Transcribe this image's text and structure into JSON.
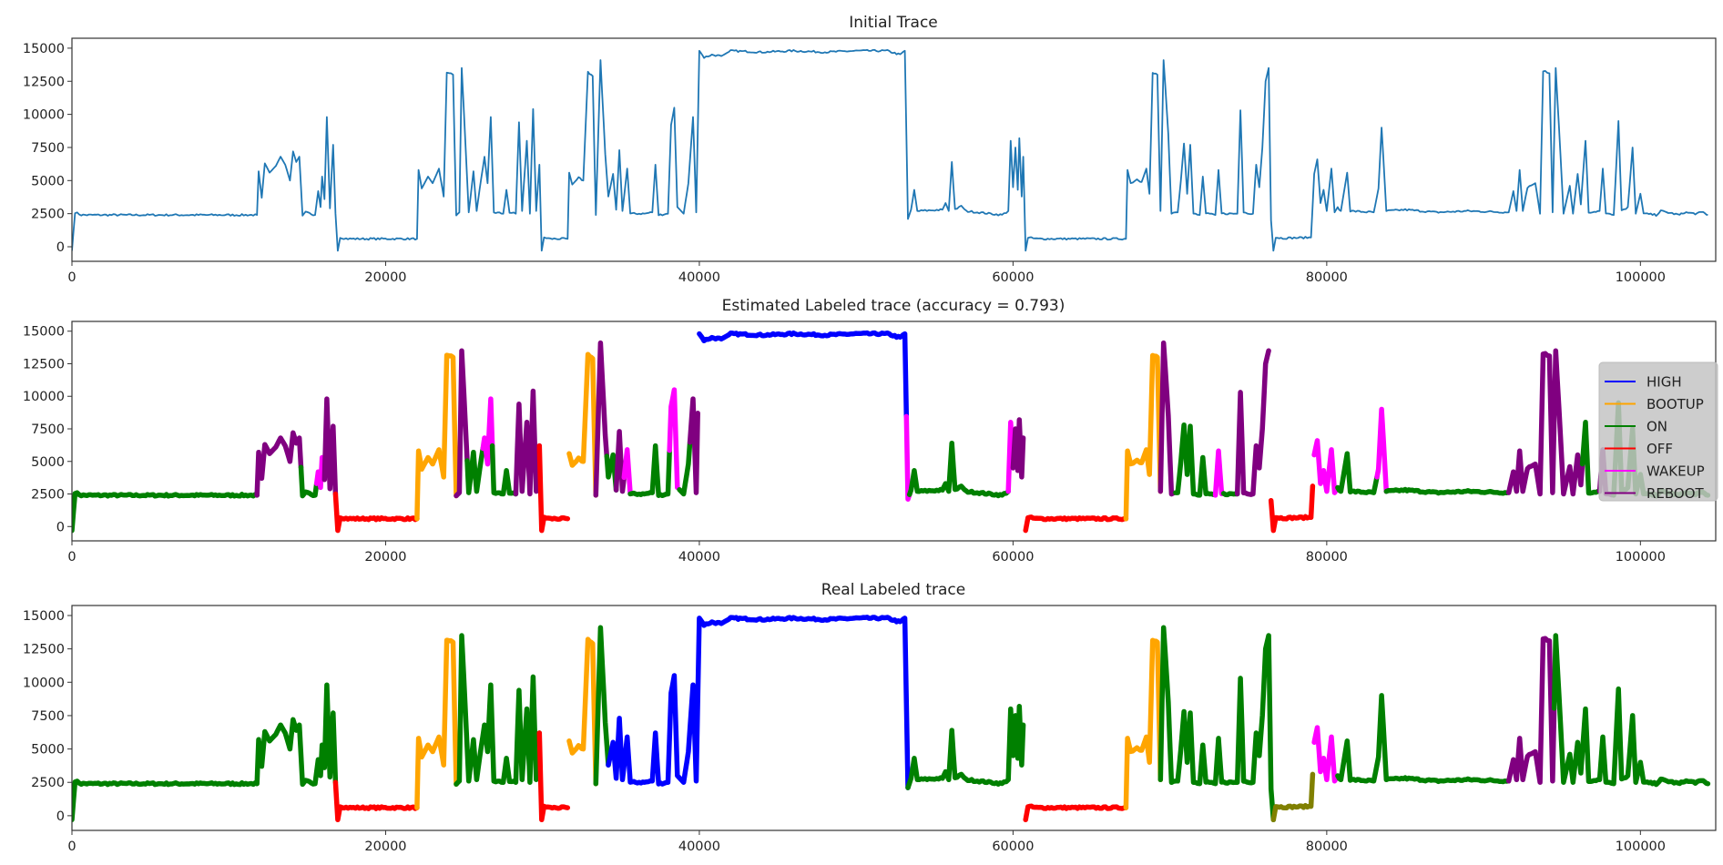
{
  "chart_data": [
    {
      "type": "line",
      "title": "Initial Trace",
      "line_color": "#1f77b4",
      "xlim": [
        0,
        104800
      ],
      "ylim": [
        -1100,
        15750
      ],
      "xticks": [
        0,
        20000,
        40000,
        60000,
        80000,
        100000
      ],
      "yticks": [
        0,
        2500,
        5000,
        7500,
        10000,
        12500,
        15000
      ],
      "grid": false
    },
    {
      "type": "line",
      "title": "Estimated Labeled trace (accuracy = 0.793)",
      "accuracy": 0.793,
      "xlim": [
        0,
        104800
      ],
      "ylim": [
        -1100,
        15750
      ],
      "xticks": [
        0,
        20000,
        40000,
        60000,
        80000,
        100000
      ],
      "yticks": [
        0,
        2500,
        5000,
        7500,
        10000,
        12500,
        15000
      ],
      "grid": false,
      "legend_placement": "right",
      "segments": [
        [
          0,
          11800,
          "ON"
        ],
        [
          11800,
          14600,
          "REBOOT"
        ],
        [
          14600,
          15600,
          "ON"
        ],
        [
          15600,
          16000,
          "WAKEUP"
        ],
        [
          16000,
          16800,
          "REBOOT"
        ],
        [
          16800,
          22000,
          "OFF"
        ],
        [
          22000,
          24500,
          "BOOTUP"
        ],
        [
          24500,
          25200,
          "REBOOT"
        ],
        [
          25200,
          26200,
          "ON"
        ],
        [
          26200,
          26800,
          "WAKEUP"
        ],
        [
          26800,
          28300,
          "ON"
        ],
        [
          28300,
          29800,
          "REBOOT"
        ],
        [
          29800,
          31650,
          "OFF"
        ],
        [
          31650,
          33400,
          "BOOTUP"
        ],
        [
          33400,
          34100,
          "REBOOT"
        ],
        [
          34100,
          34700,
          "ON"
        ],
        [
          34700,
          35200,
          "REBOOT"
        ],
        [
          35200,
          35600,
          "WAKEUP"
        ],
        [
          35600,
          38100,
          "ON"
        ],
        [
          38100,
          38700,
          "WAKEUP"
        ],
        [
          38700,
          39400,
          "ON"
        ],
        [
          39400,
          39950,
          "REBOOT"
        ],
        [
          39950,
          53200,
          "HIGH"
        ],
        [
          53200,
          53400,
          "WAKEUP"
        ],
        [
          53400,
          59700,
          "ON"
        ],
        [
          59700,
          60000,
          "WAKEUP"
        ],
        [
          60000,
          60700,
          "REBOOT"
        ],
        [
          60700,
          67200,
          "OFF"
        ],
        [
          67200,
          69400,
          "BOOTUP"
        ],
        [
          69400,
          70300,
          "REBOOT"
        ],
        [
          70300,
          72800,
          "ON"
        ],
        [
          72800,
          73400,
          "WAKEUP"
        ],
        [
          73400,
          74300,
          "ON"
        ],
        [
          74300,
          76400,
          "REBOOT"
        ],
        [
          76400,
          79150,
          "OFF"
        ],
        [
          79150,
          80700,
          "WAKEUP"
        ],
        [
          80700,
          83200,
          "ON"
        ],
        [
          83200,
          83800,
          "WAKEUP"
        ],
        [
          83800,
          91500,
          "ON"
        ],
        [
          91500,
          96300,
          "REBOOT"
        ],
        [
          96300,
          97400,
          "ON"
        ],
        [
          97400,
          98200,
          "REBOOT"
        ],
        [
          98200,
          104300,
          "ON"
        ]
      ]
    },
    {
      "type": "line",
      "title": "Real Labeled trace",
      "xlim": [
        0,
        104800
      ],
      "ylim": [
        -1100,
        15750
      ],
      "xticks": [
        0,
        20000,
        40000,
        60000,
        80000,
        100000
      ],
      "yticks": [
        0,
        2500,
        5000,
        7500,
        10000,
        12500,
        15000
      ],
      "grid": false,
      "segments": [
        [
          0,
          16800,
          "ON"
        ],
        [
          16800,
          22000,
          "OFF"
        ],
        [
          22000,
          24500,
          "BOOTUP"
        ],
        [
          24500,
          29800,
          "ON"
        ],
        [
          29800,
          31650,
          "OFF"
        ],
        [
          31650,
          33400,
          "BOOTUP"
        ],
        [
          33400,
          34200,
          "ON"
        ],
        [
          34200,
          53300,
          "HIGH"
        ],
        [
          53300,
          60700,
          "ON"
        ],
        [
          60700,
          67200,
          "OFF"
        ],
        [
          67200,
          69400,
          "BOOTUP"
        ],
        [
          69400,
          76600,
          "ON"
        ],
        [
          76600,
          79150,
          "#808000"
        ],
        [
          79150,
          80700,
          "WAKEUP"
        ],
        [
          80700,
          91500,
          "ON"
        ],
        [
          91500,
          94500,
          "REBOOT"
        ],
        [
          94500,
          104300,
          "ON"
        ]
      ]
    }
  ],
  "legend": [
    {
      "name": "HIGH",
      "color": "#0000ff"
    },
    {
      "name": "BOOTUP",
      "color": "#ffa500"
    },
    {
      "name": "ON",
      "color": "#008000"
    },
    {
      "name": "OFF",
      "color": "#ff0000"
    },
    {
      "name": "WAKEUP",
      "color": "#ff00ff"
    },
    {
      "name": "REBOOT",
      "color": "#800080"
    }
  ],
  "trace": [
    [
      0,
      -300
    ],
    [
      200,
      2600
    ],
    [
      600,
      2400
    ],
    [
      11800,
      2400
    ],
    [
      11900,
      5700
    ],
    [
      12100,
      3700
    ],
    [
      12300,
      6300
    ],
    [
      12600,
      5600
    ],
    [
      13000,
      6100
    ],
    [
      13300,
      6800
    ],
    [
      13600,
      6200
    ],
    [
      13900,
      5000
    ],
    [
      14100,
      7200
    ],
    [
      14300,
      6400
    ],
    [
      14500,
      6800
    ],
    [
      14700,
      2300
    ],
    [
      14900,
      2600
    ],
    [
      15500,
      2400
    ],
    [
      15700,
      4200
    ],
    [
      15850,
      3000
    ],
    [
      15950,
      5300
    ],
    [
      16100,
      3600
    ],
    [
      16250,
      9800
    ],
    [
      16450,
      2900
    ],
    [
      16650,
      7700
    ],
    [
      16800,
      2500
    ],
    [
      16950,
      -300
    ],
    [
      17100,
      700
    ],
    [
      17600,
      600
    ],
    [
      22000,
      600
    ],
    [
      22100,
      5800
    ],
    [
      22300,
      4400
    ],
    [
      22700,
      5300
    ],
    [
      23000,
      4800
    ],
    [
      23400,
      5900
    ],
    [
      23700,
      3800
    ],
    [
      23900,
      13100
    ],
    [
      24300,
      13000
    ],
    [
      24500,
      2300
    ],
    [
      24700,
      2600
    ],
    [
      24850,
      13500
    ],
    [
      25100,
      7500
    ],
    [
      25300,
      2600
    ],
    [
      25600,
      5700
    ],
    [
      25800,
      2700
    ],
    [
      26000,
      4400
    ],
    [
      26300,
      6800
    ],
    [
      26500,
      4800
    ],
    [
      26700,
      9800
    ],
    [
      26900,
      2600
    ],
    [
      27500,
      2500
    ],
    [
      27700,
      4300
    ],
    [
      27900,
      2600
    ],
    [
      28300,
      2500
    ],
    [
      28500,
      9400
    ],
    [
      28700,
      2700
    ],
    [
      29000,
      8000
    ],
    [
      29200,
      2500
    ],
    [
      29400,
      10400
    ],
    [
      29600,
      2700
    ],
    [
      29800,
      6200
    ],
    [
      29950,
      -300
    ],
    [
      30100,
      700
    ],
    [
      30500,
      600
    ],
    [
      31600,
      600
    ],
    [
      31700,
      5600
    ],
    [
      31900,
      4700
    ],
    [
      32300,
      5200
    ],
    [
      32600,
      5000
    ],
    [
      32900,
      13200
    ],
    [
      33200,
      12900
    ],
    [
      33400,
      2400
    ],
    [
      33700,
      14100
    ],
    [
      34000,
      7000
    ],
    [
      34200,
      3800
    ],
    [
      34500,
      5500
    ],
    [
      34700,
      2800
    ],
    [
      34900,
      7300
    ],
    [
      35100,
      2700
    ],
    [
      35400,
      5900
    ],
    [
      35600,
      2500
    ],
    [
      36500,
      2500
    ],
    [
      37000,
      2600
    ],
    [
      37200,
      6200
    ],
    [
      37400,
      2400
    ],
    [
      38000,
      2500
    ],
    [
      38200,
      9200
    ],
    [
      38400,
      10500
    ],
    [
      38600,
      3000
    ],
    [
      39000,
      2500
    ],
    [
      39300,
      4800
    ],
    [
      39600,
      9800
    ],
    [
      39800,
      2600
    ],
    [
      40000,
      14800
    ],
    [
      40300,
      14300
    ],
    [
      40800,
      14500
    ],
    [
      41400,
      14400
    ],
    [
      42000,
      14800
    ],
    [
      44000,
      14700
    ],
    [
      46000,
      14800
    ],
    [
      48000,
      14700
    ],
    [
      50000,
      14800
    ],
    [
      52000,
      14800
    ],
    [
      52800,
      14500
    ],
    [
      53100,
      14800
    ],
    [
      53300,
      2100
    ],
    [
      53500,
      2800
    ],
    [
      53700,
      4300
    ],
    [
      53900,
      2700
    ],
    [
      55500,
      2800
    ],
    [
      55700,
      3300
    ],
    [
      55900,
      2700
    ],
    [
      56100,
      6400
    ],
    [
      56300,
      2800
    ],
    [
      56700,
      3100
    ],
    [
      57000,
      2700
    ],
    [
      59300,
      2400
    ],
    [
      59700,
      2700
    ],
    [
      59850,
      8000
    ],
    [
      60000,
      4500
    ],
    [
      60150,
      7500
    ],
    [
      60300,
      4300
    ],
    [
      60400,
      8200
    ],
    [
      60550,
      3800
    ],
    [
      60650,
      6800
    ],
    [
      60800,
      -300
    ],
    [
      60950,
      700
    ],
    [
      61500,
      600
    ],
    [
      67200,
      600
    ],
    [
      67300,
      5800
    ],
    [
      67500,
      4800
    ],
    [
      67900,
      5100
    ],
    [
      68200,
      4900
    ],
    [
      68500,
      5900
    ],
    [
      68700,
      4000
    ],
    [
      68900,
      13200
    ],
    [
      69200,
      13000
    ],
    [
      69400,
      2700
    ],
    [
      69600,
      14100
    ],
    [
      69900,
      8500
    ],
    [
      70100,
      2500
    ],
    [
      70500,
      2600
    ],
    [
      70700,
      5000
    ],
    [
      70900,
      7800
    ],
    [
      71100,
      4000
    ],
    [
      71300,
      7700
    ],
    [
      71500,
      2500
    ],
    [
      71900,
      2400
    ],
    [
      72100,
      5300
    ],
    [
      72300,
      2500
    ],
    [
      72900,
      2400
    ],
    [
      73100,
      5800
    ],
    [
      73300,
      2500
    ],
    [
      74300,
      2500
    ],
    [
      74500,
      10300
    ],
    [
      74700,
      2600
    ],
    [
      75300,
      2500
    ],
    [
      75500,
      6200
    ],
    [
      75700,
      4500
    ],
    [
      75900,
      7500
    ],
    [
      76100,
      12500
    ],
    [
      76300,
      13500
    ],
    [
      76450,
      2000
    ],
    [
      76600,
      -300
    ],
    [
      76750,
      700
    ],
    [
      77200,
      650
    ],
    [
      79000,
      700
    ],
    [
      79200,
      5500
    ],
    [
      79400,
      6600
    ],
    [
      79600,
      3300
    ],
    [
      79800,
      4300
    ],
    [
      80000,
      2700
    ],
    [
      80300,
      5900
    ],
    [
      80500,
      2600
    ],
    [
      80700,
      3000
    ],
    [
      80900,
      2700
    ],
    [
      81300,
      5600
    ],
    [
      81500,
      2700
    ],
    [
      83000,
      2600
    ],
    [
      83300,
      4400
    ],
    [
      83500,
      9000
    ],
    [
      83800,
      2700
    ],
    [
      85000,
      2800
    ],
    [
      87000,
      2600
    ],
    [
      89000,
      2700
    ],
    [
      91600,
      2600
    ],
    [
      91900,
      4200
    ],
    [
      92100,
      2700
    ],
    [
      92300,
      5800
    ],
    [
      92500,
      2700
    ],
    [
      92800,
      4500
    ],
    [
      93300,
      4800
    ],
    [
      93600,
      2500
    ],
    [
      93800,
      13300
    ],
    [
      94200,
      13100
    ],
    [
      94400,
      2600
    ],
    [
      94600,
      13500
    ],
    [
      94900,
      7000
    ],
    [
      95100,
      2500
    ],
    [
      95500,
      4600
    ],
    [
      95700,
      2500
    ],
    [
      96000,
      5500
    ],
    [
      96200,
      3200
    ],
    [
      96500,
      8000
    ],
    [
      96700,
      2600
    ],
    [
      97400,
      2700
    ],
    [
      97600,
      5900
    ],
    [
      97800,
      2500
    ],
    [
      98300,
      2400
    ],
    [
      98600,
      9500
    ],
    [
      98800,
      2700
    ],
    [
      99200,
      3000
    ],
    [
      99500,
      7500
    ],
    [
      99700,
      2500
    ],
    [
      100000,
      4000
    ],
    [
      100200,
      2500
    ],
    [
      101000,
      2400
    ],
    [
      101300,
      2700
    ],
    [
      102500,
      2400
    ],
    [
      102800,
      2600
    ],
    [
      103500,
      2500
    ],
    [
      104000,
      2600
    ],
    [
      104300,
      2400
    ]
  ]
}
